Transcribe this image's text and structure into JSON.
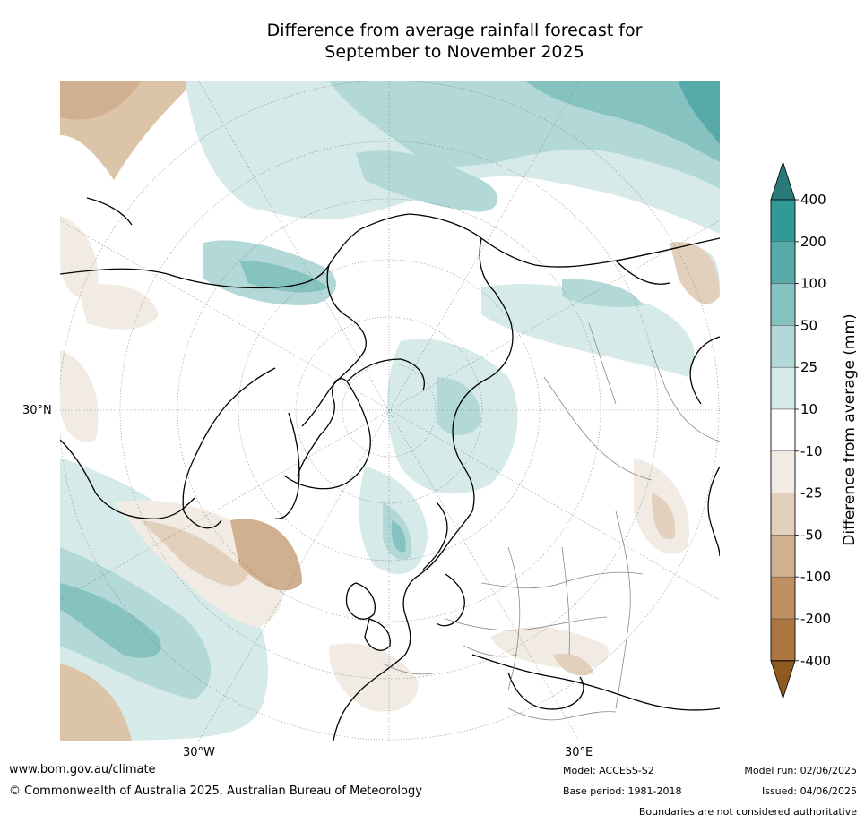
{
  "title": {
    "line1": "Difference from average rainfall forecast for",
    "line2": "September to November 2025"
  },
  "map": {
    "projection": "north-polar-stereographic",
    "tick_labels": {
      "left": "30°N",
      "bottom_left": "30°W",
      "bottom_right": "30°E"
    }
  },
  "colorbar": {
    "label": "Difference from average (mm)",
    "tick_labels": [
      "400",
      "200",
      "100",
      "50",
      "25",
      "10",
      "-10",
      "-25",
      "-50",
      "-100",
      "-200",
      "-400"
    ],
    "bins": [
      {
        "range": "> 400",
        "color": "#2a7b78"
      },
      {
        "range": "200 to 400",
        "color": "#2f9a96"
      },
      {
        "range": "100 to 200",
        "color": "#58aaa8"
      },
      {
        "range": "50 to 100",
        "color": "#85c2c0"
      },
      {
        "range": "25 to 50",
        "color": "#b2d9d8"
      },
      {
        "range": "10 to 25",
        "color": "#d6eae9"
      },
      {
        "range": "-10 to 10",
        "color": "#ffffff"
      },
      {
        "range": "-25 to -10",
        "color": "#f1ebe4"
      },
      {
        "range": "-50 to -25",
        "color": "#e2d0bd"
      },
      {
        "range": "-100 to -50",
        "color": "#d1b08f"
      },
      {
        "range": "-200 to -100",
        "color": "#bf8f62"
      },
      {
        "range": "-400 to -200",
        "color": "#ac743e"
      },
      {
        "range": "< -400",
        "color": "#8e5a22"
      }
    ]
  },
  "footer": {
    "website": "www.bom.gov.au/climate",
    "copyright": "© Commonwealth of Australia 2025, Australian Bureau of Meteorology",
    "model": "Model: ACCESS-S2",
    "base_period": "Base period: 1981-2018",
    "model_run": "Model run: 02/06/2025",
    "issued": "Issued: 04/06/2025",
    "disclaimer": "Boundaries are not considered authoritative"
  }
}
